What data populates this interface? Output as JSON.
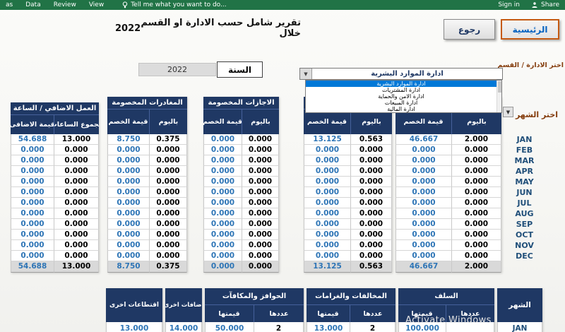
{
  "ribbon": {
    "tabs": [
      "as",
      "Data",
      "Review",
      "View"
    ],
    "tell_me": "Tell me what you want to do...",
    "sign_in": "Sign in",
    "share_label": "Share"
  },
  "header": {
    "title": "تقرير شامل حسب الادارة او القسم خلال",
    "year": "2022",
    "back_button": "رجوع",
    "home_button": "الرئيسية"
  },
  "filters": {
    "year_label": "السنة",
    "year_value": "2022",
    "department_label": "اختر الادارة / القسم",
    "department_value": "ادارة الموارد البشرية",
    "department_options": [
      "ادارة الموارد البشرية",
      "ادارة المشتريات",
      "ادارة الامن والحماية",
      "ادارة المبيعات",
      "ادارة المالية"
    ],
    "month_label": "اختر الشهر"
  },
  "main_table": {
    "groups": [
      {
        "label": "العمل الاضافي / الساعة",
        "sub": [
          "قيمة الاضافى",
          "مجموع الساعات"
        ]
      },
      {
        "label": "المغادرات المخصومة",
        "sub": [
          "قيمة الخصم",
          "باليوم"
        ]
      },
      {
        "label": "الاجازات المخصومة",
        "sub": [
          "قيمة الخصم",
          "باليوم"
        ]
      },
      {
        "label": "",
        "sub": [
          "قيمة الخصم",
          "باليوم"
        ]
      },
      {
        "label": "",
        "sub": [
          "قيمة الخصم",
          "باليوم"
        ]
      }
    ],
    "months": [
      "JAN",
      "FEB",
      "MAR",
      "APR",
      "MAY",
      "JUN",
      "JUL",
      "AUG",
      "SEP",
      "OCT",
      "NOV",
      "DEC"
    ],
    "rows": [
      [
        "54.688",
        "13.000",
        "8.750",
        "0.375",
        "0.000",
        "0.000",
        "13.125",
        "0.563",
        "46.667",
        "2.000"
      ],
      [
        "0.000",
        "0.000",
        "0.000",
        "0.000",
        "0.000",
        "0.000",
        "0.000",
        "0.000",
        "0.000",
        "0.000"
      ],
      [
        "0.000",
        "0.000",
        "0.000",
        "0.000",
        "0.000",
        "0.000",
        "0.000",
        "0.000",
        "0.000",
        "0.000"
      ],
      [
        "0.000",
        "0.000",
        "0.000",
        "0.000",
        "0.000",
        "0.000",
        "0.000",
        "0.000",
        "0.000",
        "0.000"
      ],
      [
        "0.000",
        "0.000",
        "0.000",
        "0.000",
        "0.000",
        "0.000",
        "0.000",
        "0.000",
        "0.000",
        "0.000"
      ],
      [
        "0.000",
        "0.000",
        "0.000",
        "0.000",
        "0.000",
        "0.000",
        "0.000",
        "0.000",
        "0.000",
        "0.000"
      ],
      [
        "0.000",
        "0.000",
        "0.000",
        "0.000",
        "0.000",
        "0.000",
        "0.000",
        "0.000",
        "0.000",
        "0.000"
      ],
      [
        "0.000",
        "0.000",
        "0.000",
        "0.000",
        "0.000",
        "0.000",
        "0.000",
        "0.000",
        "0.000",
        "0.000"
      ],
      [
        "0.000",
        "0.000",
        "0.000",
        "0.000",
        "0.000",
        "0.000",
        "0.000",
        "0.000",
        "0.000",
        "0.000"
      ],
      [
        "0.000",
        "0.000",
        "0.000",
        "0.000",
        "0.000",
        "0.000",
        "0.000",
        "0.000",
        "0.000",
        "0.000"
      ],
      [
        "0.000",
        "0.000",
        "0.000",
        "0.000",
        "0.000",
        "0.000",
        "0.000",
        "0.000",
        "0.000",
        "0.000"
      ],
      [
        "0.000",
        "0.000",
        "0.000",
        "0.000",
        "0.000",
        "0.000",
        "0.000",
        "0.000",
        "0.000",
        "0.000"
      ]
    ],
    "totals": [
      "54.688",
      "13.000",
      "8.750",
      "0.375",
      "0.000",
      "0.000",
      "13.125",
      "0.563",
      "46.667",
      "2.000"
    ]
  },
  "bottom_table": {
    "deductions_label": "اقتطاعات اخرى",
    "deductions_value": "13.000",
    "additions_label": "اضافات اخرى",
    "additions_value": "14.000",
    "incentives": {
      "label": "الحوافز والمكافآت",
      "value_label": "قيمتها",
      "count_label": "عددها",
      "value": "50.000",
      "count": "2"
    },
    "violations": {
      "label": "المخالفات والغرامات",
      "value_label": "قيمتها",
      "count_label": "عددها",
      "value": "13.000",
      "count": "2"
    },
    "advances": {
      "label": "السلف",
      "value_label": "قيمتها",
      "count_label": "عددها",
      "value": "100.000",
      "count": ""
    },
    "month_label": "الشهر",
    "month_value": "JAN"
  },
  "watermark": "Activate Windows",
  "colors": {
    "ribbon_green": "#217346",
    "header_navy": "#1F3864",
    "value_blue": "#2E75B6",
    "month_navy": "#1F4E79",
    "label_brown": "#843C0C",
    "selection_blue": "#0078D7",
    "totals_gray": "#D9D9D9",
    "home_button_border": "#C55A11"
  }
}
